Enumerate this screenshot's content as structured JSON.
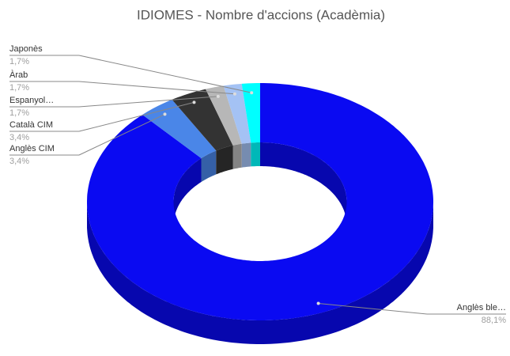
{
  "chart_data": {
    "type": "pie",
    "title": "IDIOMES - Nombre d'accions (Acadèmia)",
    "categories": [
      "Anglès ble…",
      "Anglès CIM",
      "Català CIM",
      "Espanyol…",
      "Àrab",
      "Japonès"
    ],
    "values": [
      88.1,
      3.4,
      3.4,
      1.7,
      1.7,
      1.7
    ],
    "value_labels": [
      "88,1%",
      "3,4%",
      "3,4%",
      "1,7%",
      "1,7%",
      "1,7%"
    ],
    "colors": [
      "#0a0af2",
      "#4a86e8",
      "#333333",
      "#b7b7b7",
      "#a4c2f4",
      "#00ffff"
    ],
    "donut": true,
    "three_d": true
  }
}
